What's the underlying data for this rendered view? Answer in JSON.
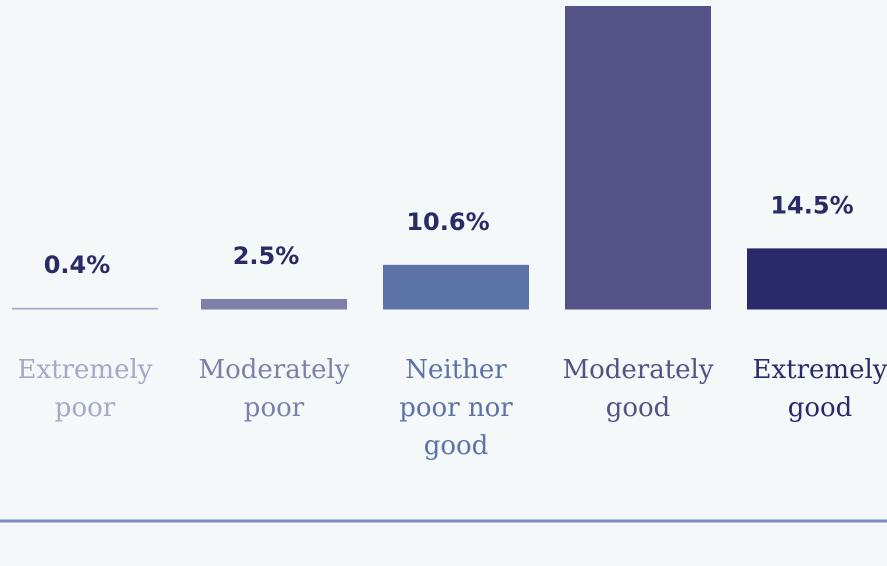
{
  "background_color": "#f4f8f8",
  "baseline_color": "#7a8cc4",
  "value_label_color": "#2a2a66",
  "chart_data": {
    "type": "bar",
    "title": "",
    "xlabel": "",
    "ylabel": "",
    "ylim": [
      0,
      72
    ],
    "grid": false,
    "categories": [
      [
        "Extremely",
        "poor"
      ],
      [
        "Moderately",
        "poor"
      ],
      [
        "Neither",
        "poor nor",
        "good"
      ],
      [
        "Moderately",
        "good"
      ],
      [
        "Extremely",
        "good"
      ]
    ],
    "values": [
      0.4,
      2.5,
      10.6,
      72,
      14.5
    ],
    "value_labels": [
      "0.4%",
      "2.5%",
      "10.6%",
      "",
      "14.5%"
    ],
    "bar_colors": [
      "#a6a9c7",
      "#7e80aa",
      "#5c73a8",
      "#555287",
      "#2a2a6a"
    ],
    "label_colors": [
      "#a6a9c7",
      "#7e80aa",
      "#5c73a8",
      "#555287",
      "#2a2a6a"
    ]
  }
}
